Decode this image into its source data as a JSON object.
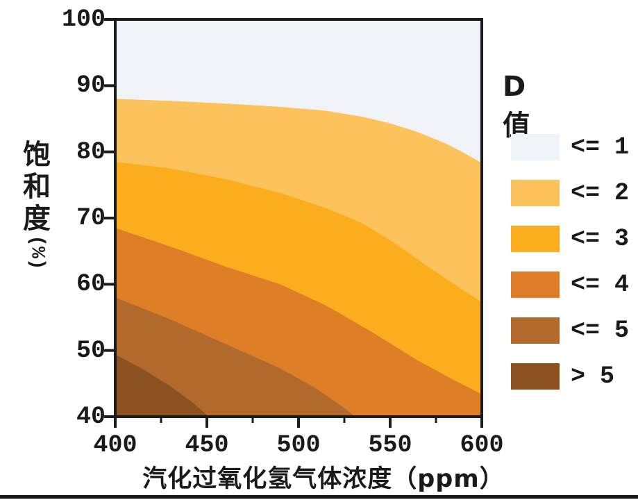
{
  "page": {
    "background": "#ffffff",
    "text_color": "#1a1a1a"
  },
  "chart_data": {
    "type": "filled-contour",
    "title": "",
    "xlabel": "汽化过氧化氢气体浓度（ppm）",
    "ylabel": "饱和度(%)",
    "ylabel_chars": [
      "饱",
      "和",
      "度"
    ],
    "ylabel_unit": "(%)",
    "xlim": [
      400,
      600
    ],
    "ylim": [
      40,
      100
    ],
    "x_ticks": [
      400,
      450,
      500,
      550,
      600
    ],
    "x_minor_ticks": [
      425,
      475,
      525,
      575
    ],
    "y_ticks": [
      100,
      90,
      80,
      70,
      60,
      50,
      40
    ],
    "grid": false,
    "axis_color": "#1c1c1c",
    "legend_position": "right",
    "legend_title": "D值",
    "bands": [
      {
        "label": "<= 1",
        "color": "#f0f4f8"
      },
      {
        "label": "<= 2",
        "color": "#fcc35c"
      },
      {
        "label": "<= 3",
        "color": "#fbad1e"
      },
      {
        "label": "<= 4",
        "color": "#de7e26"
      },
      {
        "label": "<= 5",
        "color": "#b2692c"
      },
      {
        "label": "> 5",
        "color": "#8c5120"
      }
    ],
    "contours": [
      {
        "level": 1,
        "points": [
          [
            400,
            88.0
          ],
          [
            430,
            87.7
          ],
          [
            460,
            87.3
          ],
          [
            490,
            86.8
          ],
          [
            515,
            86.2
          ],
          [
            535,
            85.3
          ],
          [
            550,
            84.3
          ],
          [
            565,
            83.0
          ],
          [
            580,
            81.3
          ],
          [
            590,
            79.9
          ],
          [
            600,
            78.3
          ]
        ]
      },
      {
        "level": 2,
        "points": [
          [
            400,
            78.5
          ],
          [
            430,
            77.5
          ],
          [
            460,
            75.9
          ],
          [
            490,
            73.8
          ],
          [
            515,
            71.5
          ],
          [
            535,
            69.2
          ],
          [
            552,
            66.3
          ],
          [
            570,
            62.8
          ],
          [
            585,
            60.0
          ],
          [
            600,
            57.3
          ]
        ]
      },
      {
        "level": 3,
        "points": [
          [
            400,
            68.5
          ],
          [
            430,
            65.7
          ],
          [
            460,
            62.7
          ],
          [
            490,
            60.0
          ],
          [
            515,
            56.8
          ],
          [
            540,
            52.8
          ],
          [
            565,
            48.5
          ],
          [
            585,
            45.5
          ],
          [
            600,
            43.4
          ]
        ]
      },
      {
        "level": 4,
        "points": [
          [
            400,
            58.0
          ],
          [
            430,
            54.7
          ],
          [
            460,
            51.0
          ],
          [
            490,
            47.3
          ],
          [
            510,
            44.2
          ],
          [
            525,
            41.3
          ],
          [
            531,
            40.0
          ]
        ]
      },
      {
        "level": 5,
        "points": [
          [
            400,
            49.4
          ],
          [
            415,
            47.2
          ],
          [
            430,
            44.6
          ],
          [
            442,
            42.2
          ],
          [
            451,
            40.0
          ]
        ]
      }
    ]
  }
}
